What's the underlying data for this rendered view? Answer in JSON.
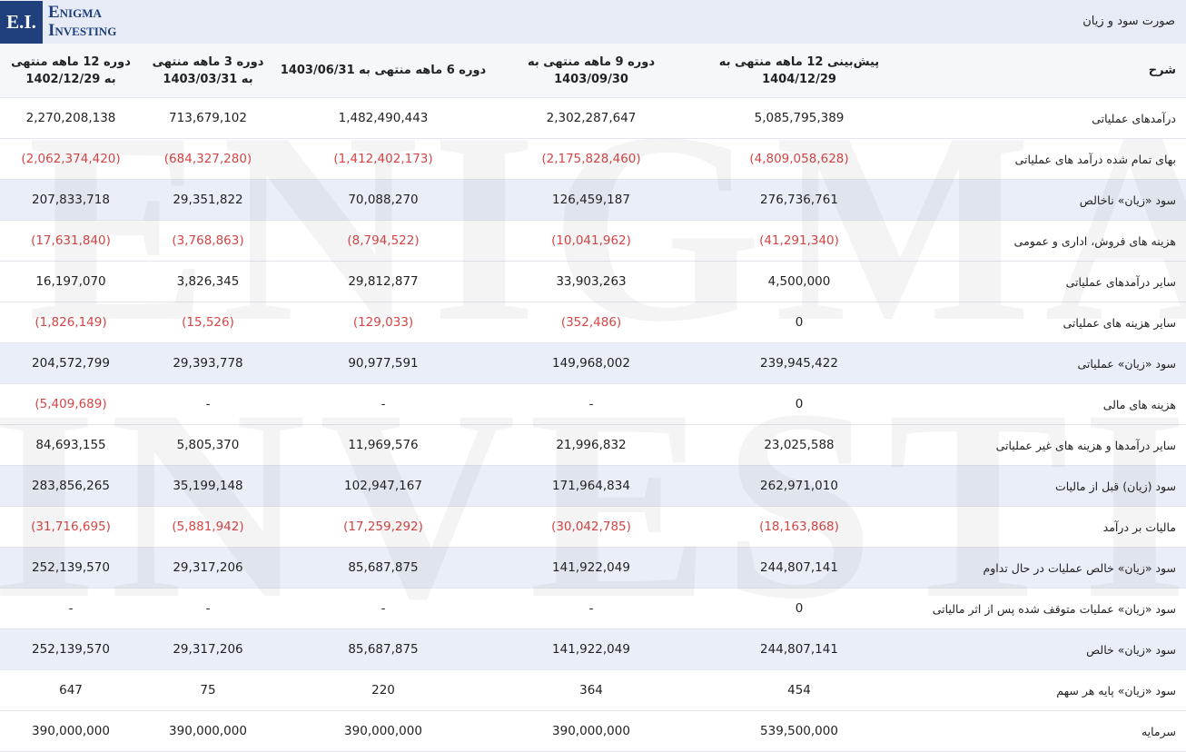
{
  "brand": {
    "logo_initials": "E.I.",
    "logo_line1": "Enigma",
    "logo_line2": "Investing",
    "watermark_line1": "ENIGMA",
    "watermark_line2": "INVESTING"
  },
  "page": {
    "title": "صورت سود و زیان"
  },
  "colors": {
    "header_bg": "#e6ebf5",
    "highlight_row": "#e9eef8",
    "negative": "#d64545",
    "brand": "#1f3f7d"
  },
  "table": {
    "headers": [
      "شرح",
      "پیش‌بینی 12 ماهه منتهی به 1404/12/29",
      "دوره 9 ماهه منتهی به 1403/09/30",
      "دوره 6 ماهه منتهی به 1403/06/31",
      "دوره 3 ماهه منتهی به 1403/03/31",
      "دوره 12 ماهه منتهی به 1402/12/29"
    ],
    "rows": [
      {
        "label": "درآمدهای عملیاتی",
        "highlight": false,
        "values": [
          "5,085,795,389",
          "2,302,287,647",
          "1,482,490,443",
          "713,679,102",
          "2,270,208,138"
        ]
      },
      {
        "label": "بهای تمام شده درآمد های عملیاتی",
        "highlight": false,
        "values": [
          "(4,809,058,628)",
          "(2,175,828,460)",
          "(1,412,402,173)",
          "(684,327,280)",
          "(2,062,374,420)"
        ]
      },
      {
        "label": "سود «زیان» ناخالص",
        "highlight": true,
        "values": [
          "276,736,761",
          "126,459,187",
          "70,088,270",
          "29,351,822",
          "207,833,718"
        ]
      },
      {
        "label": "هزینه های فروش، اداری و عمومی",
        "highlight": false,
        "values": [
          "(41,291,340)",
          "(10,041,962)",
          "(8,794,522)",
          "(3,768,863)",
          "(17,631,840)"
        ]
      },
      {
        "label": "سایر درآمدهای عملیاتی",
        "highlight": false,
        "values": [
          "4,500,000",
          "33,903,263",
          "29,812,877",
          "3,826,345",
          "16,197,070"
        ]
      },
      {
        "label": "سایر هزینه های عملیاتی",
        "highlight": false,
        "values": [
          "0",
          "(352,486)",
          "(129,033)",
          "(15,526)",
          "(1,826,149)"
        ]
      },
      {
        "label": "سود «زیان» عملیاتی",
        "highlight": true,
        "values": [
          "239,945,422",
          "149,968,002",
          "90,977,591",
          "29,393,778",
          "204,572,799"
        ]
      },
      {
        "label": "هزینه های مالی",
        "highlight": false,
        "values": [
          "0",
          "-",
          "-",
          "-",
          "(5,409,689)"
        ]
      },
      {
        "label": "سایر درآمدها و هزینه های غیر عملیاتی",
        "highlight": false,
        "values": [
          "23,025,588",
          "21,996,832",
          "11,969,576",
          "5,805,370",
          "84,693,155"
        ]
      },
      {
        "label": "سود (زیان) قبل از مالیات",
        "highlight": true,
        "values": [
          "262,971,010",
          "171,964,834",
          "102,947,167",
          "35,199,148",
          "283,856,265"
        ]
      },
      {
        "label": "مالیات بر درآمد",
        "highlight": false,
        "values": [
          "(18,163,868)",
          "(30,042,785)",
          "(17,259,292)",
          "(5,881,942)",
          "(31,716,695)"
        ]
      },
      {
        "label": "سود «زیان» خالص عملیات در حال تداوم",
        "highlight": true,
        "values": [
          "244,807,141",
          "141,922,049",
          "85,687,875",
          "29,317,206",
          "252,139,570"
        ]
      },
      {
        "label": "سود «زیان» عملیات متوقف شده پس از اثر مالیاتی",
        "highlight": false,
        "values": [
          "0",
          "-",
          "-",
          "-",
          "-"
        ]
      },
      {
        "label": "سود «زیان» خالص",
        "highlight": true,
        "values": [
          "244,807,141",
          "141,922,049",
          "85,687,875",
          "29,317,206",
          "252,139,570"
        ]
      },
      {
        "label": "سود «زیان» پایه هر سهم",
        "highlight": false,
        "values": [
          "454",
          "364",
          "220",
          "75",
          "647"
        ]
      },
      {
        "label": "سرمایه",
        "highlight": false,
        "values": [
          "539,500,000",
          "390,000,000",
          "390,000,000",
          "390,000,000",
          "390,000,000"
        ]
      }
    ]
  }
}
